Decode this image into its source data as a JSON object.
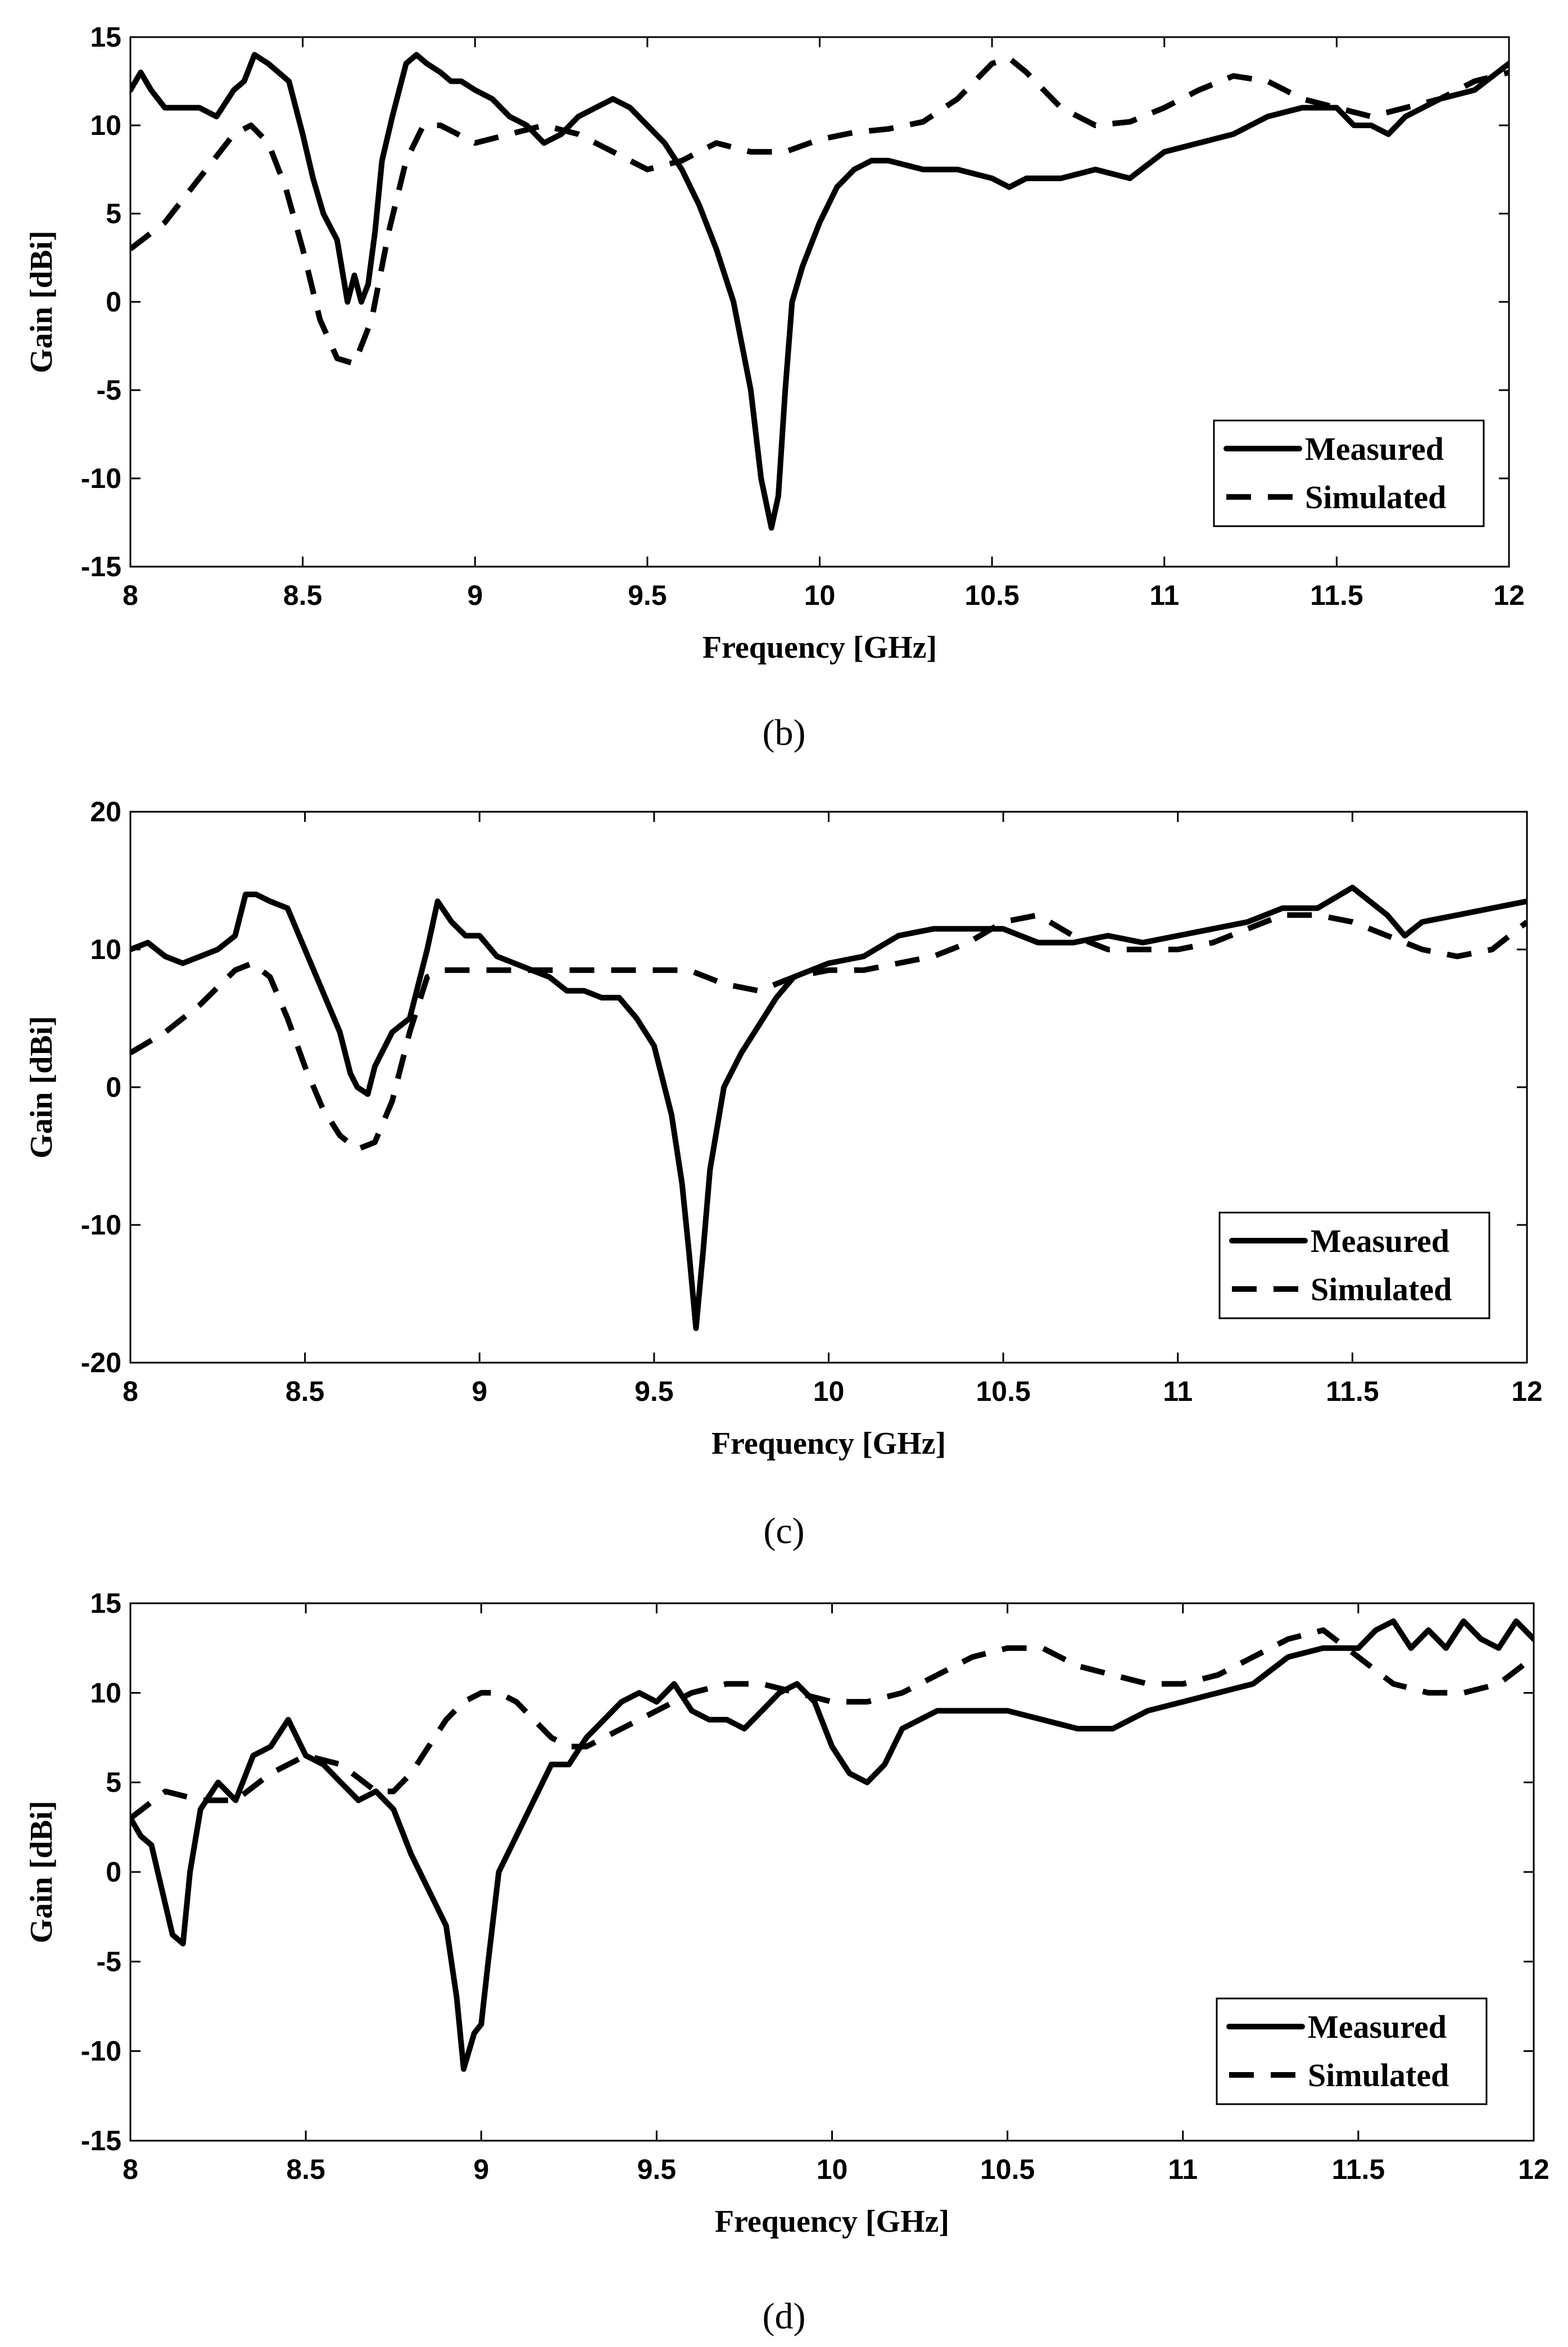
{
  "chart_data": [
    {
      "type": "line",
      "panel": "b",
      "caption": "(b)",
      "title": "",
      "xlabel": "Frequency [GHz]",
      "ylabel": "Gain [dBi]",
      "xlim": [
        8,
        12
      ],
      "ylim": [
        -15,
        15
      ],
      "xticks": [
        "8",
        "8.5",
        "9",
        "9.5",
        "10",
        "10.5",
        "11",
        "11.5",
        "12"
      ],
      "yticks": [
        "15",
        "10",
        "5",
        "0",
        "-5",
        "-10",
        "-15"
      ],
      "grid": false,
      "legend": {
        "position": "bottom-right",
        "entries": [
          "Measured",
          "Simulated"
        ]
      },
      "series": [
        {
          "name": "Measured",
          "style": "solid",
          "x": [
            8.0,
            8.03,
            8.06,
            8.1,
            8.15,
            8.2,
            8.25,
            8.3,
            8.33,
            8.36,
            8.4,
            8.43,
            8.46,
            8.5,
            8.53,
            8.56,
            8.6,
            8.63,
            8.65,
            8.67,
            8.69,
            8.71,
            8.73,
            8.76,
            8.8,
            8.83,
            8.86,
            8.9,
            8.93,
            8.96,
            9.0,
            9.05,
            9.1,
            9.15,
            9.2,
            9.25,
            9.3,
            9.35,
            9.4,
            9.45,
            9.5,
            9.55,
            9.6,
            9.65,
            9.7,
            9.75,
            9.8,
            9.83,
            9.86,
            9.88,
            9.9,
            9.92,
            9.95,
            10.0,
            10.05,
            10.1,
            10.15,
            10.2,
            10.3,
            10.4,
            10.5,
            10.55,
            10.6,
            10.7,
            10.8,
            10.9,
            11.0,
            11.1,
            11.2,
            11.3,
            11.4,
            11.5,
            11.55,
            11.6,
            11.65,
            11.7,
            11.8,
            11.9,
            12.0
          ],
          "values": [
            12,
            13,
            12,
            11,
            11,
            11,
            10.5,
            12,
            12.5,
            14,
            13.5,
            13,
            12.5,
            9.5,
            7,
            5,
            3.5,
            0,
            1.5,
            0,
            1,
            4,
            8,
            10.5,
            13.5,
            14,
            13.5,
            13,
            12.5,
            12.5,
            12,
            11.5,
            10.5,
            10,
            9,
            9.5,
            10.5,
            11,
            11.5,
            11,
            10,
            9,
            7.5,
            5.5,
            3,
            0,
            -5,
            -10,
            -12.8,
            -11,
            -5,
            0,
            2,
            4.5,
            6.5,
            7.5,
            8,
            8,
            7.5,
            7.5,
            7,
            6.5,
            7,
            7,
            7.5,
            7,
            8.5,
            9,
            9.5,
            10.5,
            11,
            11,
            10,
            10,
            9.5,
            10.5,
            11.5,
            12,
            13.5
          ]
        },
        {
          "name": "Simulated",
          "style": "dashed",
          "x": [
            8.0,
            8.1,
            8.2,
            8.3,
            8.35,
            8.4,
            8.45,
            8.5,
            8.55,
            8.6,
            8.65,
            8.7,
            8.75,
            8.8,
            8.85,
            8.9,
            9.0,
            9.1,
            9.2,
            9.3,
            9.4,
            9.5,
            9.6,
            9.7,
            9.8,
            9.9,
            10.0,
            10.1,
            10.2,
            10.3,
            10.4,
            10.5,
            10.55,
            10.6,
            10.7,
            10.8,
            10.9,
            11.0,
            11.1,
            11.2,
            11.3,
            11.4,
            11.5,
            11.6,
            11.7,
            11.8,
            11.9,
            12.0
          ],
          "values": [
            3,
            4.5,
            7,
            9.5,
            10,
            9,
            6.5,
            3,
            -1,
            -3.2,
            -3.5,
            -1,
            4,
            8,
            10,
            10,
            9,
            9.5,
            10,
            9.5,
            8.5,
            7.5,
            8,
            9,
            8.5,
            8.5,
            9.2,
            9.6,
            9.8,
            10.2,
            11.5,
            13.5,
            13.8,
            13,
            11,
            10,
            10.2,
            11,
            12,
            12.8,
            12.5,
            11.5,
            11,
            10.5,
            11,
            11.5,
            12.5,
            13
          ]
        }
      ]
    },
    {
      "type": "line",
      "panel": "c",
      "caption": "(c)",
      "title": "",
      "xlabel": "Frequency [GHz]",
      "ylabel": "Gain [dBi]",
      "xlim": [
        8,
        12
      ],
      "ylim": [
        -20,
        20
      ],
      "xticks": [
        "8",
        "8.5",
        "9",
        "9.5",
        "10",
        "10.5",
        "11",
        "11.5",
        "12"
      ],
      "yticks": [
        "20",
        "10",
        "0",
        "-10",
        "-20"
      ],
      "grid": false,
      "legend": {
        "position": "bottom-right",
        "entries": [
          "Measured",
          "Simulated"
        ]
      },
      "series": [
        {
          "name": "Measured",
          "style": "solid",
          "x": [
            8.0,
            8.05,
            8.1,
            8.15,
            8.2,
            8.25,
            8.3,
            8.33,
            8.36,
            8.4,
            8.45,
            8.5,
            8.55,
            8.6,
            8.63,
            8.65,
            8.68,
            8.7,
            8.75,
            8.8,
            8.85,
            8.88,
            8.92,
            8.96,
            9.0,
            9.05,
            9.1,
            9.15,
            9.2,
            9.25,
            9.3,
            9.35,
            9.4,
            9.45,
            9.5,
            9.55,
            9.58,
            9.6,
            9.62,
            9.64,
            9.66,
            9.7,
            9.75,
            9.8,
            9.85,
            9.9,
            10.0,
            10.1,
            10.2,
            10.3,
            10.4,
            10.5,
            10.6,
            10.7,
            10.8,
            10.9,
            11.0,
            11.1,
            11.2,
            11.3,
            11.4,
            11.5,
            11.55,
            11.6,
            11.65,
            11.7,
            11.8,
            11.9,
            12.0
          ],
          "values": [
            10,
            10.5,
            9.5,
            9,
            9.5,
            10,
            11,
            14,
            14,
            13.5,
            13,
            10,
            7,
            4,
            1,
            0,
            -0.5,
            1.5,
            4,
            5,
            10,
            13.5,
            12,
            11,
            11,
            9.5,
            9,
            8.5,
            8,
            7,
            7,
            6.5,
            6.5,
            5,
            3,
            -2,
            -7,
            -12,
            -17.5,
            -12,
            -6,
            0,
            2.5,
            4.5,
            6.5,
            8,
            9,
            9.5,
            11,
            11.5,
            11.5,
            11.5,
            10.5,
            10.5,
            11,
            10.5,
            11,
            11.5,
            12,
            13,
            13,
            14.5,
            13.5,
            12.5,
            11,
            12,
            12.5,
            13,
            13.5
          ]
        },
        {
          "name": "Simulated",
          "style": "dashed",
          "x": [
            8.0,
            8.1,
            8.2,
            8.3,
            8.35,
            8.4,
            8.45,
            8.5,
            8.55,
            8.6,
            8.65,
            8.7,
            8.75,
            8.8,
            8.85,
            8.9,
            9.0,
            9.1,
            9.2,
            9.3,
            9.4,
            9.5,
            9.6,
            9.7,
            9.8,
            9.9,
            10.0,
            10.1,
            10.2,
            10.3,
            10.4,
            10.5,
            10.6,
            10.7,
            10.8,
            10.9,
            11.0,
            11.1,
            11.2,
            11.3,
            11.4,
            11.5,
            11.6,
            11.7,
            11.8,
            11.9,
            12.0
          ],
          "values": [
            2.5,
            4,
            6,
            8.5,
            9,
            8,
            5,
            1.5,
            -1.5,
            -3.5,
            -4.5,
            -4,
            -1,
            4,
            8,
            8.5,
            8.5,
            8.5,
            8.5,
            8.5,
            8.5,
            8.5,
            8.5,
            7.5,
            7,
            8,
            8.5,
            8.5,
            9,
            9.5,
            10.5,
            12,
            12.5,
            11,
            10,
            10,
            10,
            10.5,
            11.5,
            12.5,
            12.5,
            12,
            11,
            10,
            9.5,
            10,
            12
          ]
        }
      ]
    },
    {
      "type": "line",
      "panel": "d",
      "caption": "(d)",
      "title": "",
      "xlabel": "Frequency [GHz]",
      "ylabel": "Gain [dBi]",
      "xlim": [
        8,
        12
      ],
      "ylim": [
        -15,
        15
      ],
      "xticks": [
        "8",
        "8.5",
        "9",
        "9.5",
        "10",
        "10.5",
        "11",
        "11.5",
        "12"
      ],
      "yticks": [
        "15",
        "10",
        "5",
        "0",
        "-5",
        "-10",
        "-15"
      ],
      "grid": false,
      "legend": {
        "position": "bottom-right",
        "entries": [
          "Measured",
          "Simulated"
        ]
      },
      "series": [
        {
          "name": "Measured",
          "style": "solid",
          "x": [
            8.0,
            8.03,
            8.06,
            8.09,
            8.12,
            8.15,
            8.17,
            8.2,
            8.25,
            8.3,
            8.35,
            8.4,
            8.45,
            8.5,
            8.55,
            8.6,
            8.65,
            8.7,
            8.75,
            8.8,
            8.85,
            8.9,
            8.93,
            8.95,
            8.98,
            9.0,
            9.02,
            9.05,
            9.1,
            9.15,
            9.2,
            9.25,
            9.3,
            9.35,
            9.4,
            9.45,
            9.5,
            9.55,
            9.6,
            9.65,
            9.7,
            9.75,
            9.8,
            9.85,
            9.9,
            9.95,
            10.0,
            10.05,
            10.1,
            10.15,
            10.2,
            10.3,
            10.4,
            10.5,
            10.6,
            10.7,
            10.8,
            10.9,
            11.0,
            11.1,
            11.2,
            11.3,
            11.4,
            11.5,
            11.55,
            11.6,
            11.65,
            11.7,
            11.75,
            11.8,
            11.85,
            11.9,
            11.95,
            12.0
          ],
          "values": [
            3,
            2,
            1.5,
            -1,
            -3.5,
            -4,
            0,
            3.5,
            5,
            4,
            6.5,
            7,
            8.5,
            6.5,
            6,
            5,
            4,
            4.5,
            3.5,
            1,
            -1,
            -3,
            -7,
            -11,
            -9,
            -8.5,
            -5,
            0,
            2,
            4,
            6,
            6,
            7.5,
            8.5,
            9.5,
            10,
            9.5,
            10.5,
            9,
            8.5,
            8.5,
            8,
            9,
            10,
            10.5,
            9.5,
            7,
            5.5,
            5,
            6,
            8,
            9,
            9,
            9,
            8.5,
            8,
            8,
            9,
            9.5,
            10,
            10.5,
            12,
            12.5,
            12.5,
            13.5,
            14,
            12.5,
            13.5,
            12.5,
            14,
            13,
            12.5,
            14,
            13
          ]
        },
        {
          "name": "Simulated",
          "style": "dashed",
          "x": [
            8.0,
            8.1,
            8.2,
            8.3,
            8.4,
            8.5,
            8.6,
            8.7,
            8.75,
            8.8,
            8.85,
            8.9,
            8.95,
            9.0,
            9.05,
            9.1,
            9.15,
            9.2,
            9.25,
            9.3,
            9.4,
            9.5,
            9.6,
            9.7,
            9.8,
            9.9,
            10.0,
            10.1,
            10.2,
            10.3,
            10.4,
            10.5,
            10.6,
            10.7,
            10.8,
            10.9,
            11.0,
            11.1,
            11.2,
            11.3,
            11.4,
            11.5,
            11.6,
            11.7,
            11.8,
            11.9,
            12.0
          ],
          "values": [
            3,
            4.5,
            4,
            4,
            5.5,
            6.5,
            6,
            4.5,
            4.5,
            5.5,
            7,
            8.5,
            9.5,
            10,
            10,
            9.5,
            8.5,
            7.5,
            7,
            7,
            8,
            9,
            10,
            10.5,
            10.5,
            10,
            9.5,
            9.5,
            10,
            11,
            12,
            12.5,
            12.5,
            11.5,
            11,
            10.5,
            10.5,
            11,
            12,
            13,
            13.5,
            12,
            10.5,
            10,
            10,
            10.5,
            12
          ]
        }
      ]
    }
  ]
}
